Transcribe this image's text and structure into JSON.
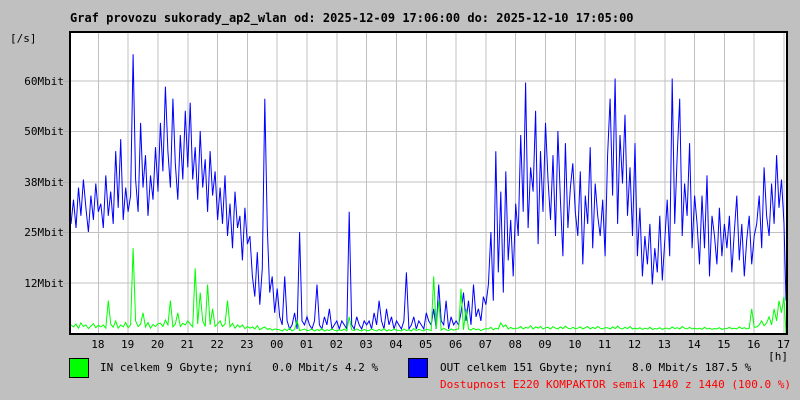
{
  "title": "Graf provozu sukorady_ap2_wlan od: 2025-12-09 17:06:00 do: 2025-12-10 17:05:00",
  "y_unit_label": "[/s]",
  "x_unit_label": "[h]",
  "colors": {
    "background": "#c0c0c0",
    "plot_background": "#ffffff",
    "grid": "#c0c0c0",
    "border": "#000000",
    "in_series": "#00ff00",
    "out_series": "#0000ff",
    "availability_text": "#ff0000"
  },
  "legend": {
    "in": {
      "color": "#00ff00",
      "label": "IN celkem 9 Gbyte; nyní   0.0 Mbit/s 4.2 %"
    },
    "out": {
      "color": "#0000ff",
      "label": "OUT celkem 151 Gbyte; nyní   8.0 Mbit/s 187.5 %"
    },
    "availability": {
      "color": "#ff0000",
      "label": "Dostupnost E220 KOMPAKTOR semik 1440 z 1440 (100.0 %)"
    }
  },
  "chart_data": {
    "type": "line",
    "title": "Graf provozu sukorady_ap2_wlan od: 2025-12-09 17:06:00 do: 2025-12-10 17:05:00",
    "ylabel": "[/s]",
    "xlabel": "[h]",
    "grid": true,
    "x_start": "17:06",
    "x_end": "17:05",
    "span_minutes": 1439,
    "sample_interval_min": 5,
    "ylim": [
      0,
      74
    ],
    "y_ticks": [
      {
        "label": "12Mbit",
        "value": 12.5
      },
      {
        "label": "25Mbit",
        "value": 25
      },
      {
        "label": "38Mbit",
        "value": 37.5
      },
      {
        "label": "50Mbit",
        "value": 50
      },
      {
        "label": "60Mbit",
        "value": 62.5
      }
    ],
    "x_hours": [
      "18",
      "19",
      "20",
      "21",
      "22",
      "23",
      "00",
      "01",
      "02",
      "03",
      "04",
      "05",
      "06",
      "07",
      "08",
      "09",
      "10",
      "11",
      "12",
      "13",
      "14",
      "15",
      "16",
      "17"
    ],
    "first_hour_offset_min": 54,
    "series": [
      {
        "name": "OUT",
        "unit": "Mbit/s",
        "color": "#0000ff",
        "values": [
          27,
          33,
          26,
          36,
          29,
          38,
          31,
          25,
          34,
          28,
          37,
          30,
          32,
          26,
          39,
          29,
          35,
          27,
          45,
          31,
          48,
          28,
          36,
          30,
          34,
          69,
          38,
          30,
          52,
          36,
          44,
          29,
          39,
          33,
          46,
          35,
          52,
          40,
          61,
          45,
          36,
          58,
          42,
          33,
          49,
          38,
          55,
          41,
          57,
          38,
          46,
          33,
          50,
          36,
          43,
          30,
          45,
          34,
          40,
          28,
          36,
          27,
          39,
          24,
          32,
          21,
          35,
          26,
          29,
          18,
          31,
          22,
          24,
          14,
          9,
          20,
          7,
          16,
          58,
          26,
          10,
          14,
          5,
          11,
          4,
          2,
          14,
          3,
          1,
          2,
          5,
          1,
          25,
          3,
          2,
          4,
          2,
          1,
          3,
          12,
          2,
          1,
          4,
          2,
          6,
          1,
          2,
          3,
          1,
          3,
          2,
          1,
          30,
          2,
          1,
          4,
          2,
          1,
          3,
          2,
          3,
          1,
          5,
          2,
          8,
          3,
          1,
          6,
          2,
          4,
          1,
          3,
          2,
          1,
          3,
          15,
          1,
          2,
          4,
          1,
          3,
          2,
          1,
          5,
          3,
          2,
          6,
          1,
          12,
          3,
          2,
          8,
          1,
          4,
          2,
          3,
          2,
          5,
          10,
          3,
          8,
          2,
          12,
          4,
          6,
          3,
          9,
          7,
          12,
          25,
          8,
          45,
          15,
          35,
          10,
          40,
          18,
          28,
          14,
          32,
          24,
          49,
          30,
          62,
          26,
          41,
          35,
          55,
          22,
          45,
          30,
          52,
          38,
          28,
          44,
          24,
          50,
          33,
          19,
          47,
          26,
          36,
          42,
          30,
          24,
          40,
          17,
          34,
          27,
          46,
          21,
          37,
          29,
          24,
          33,
          19,
          44,
          58,
          34,
          63,
          27,
          49,
          37,
          54,
          29,
          41,
          24,
          47,
          19,
          31,
          14,
          24,
          17,
          27,
          12,
          21,
          15,
          29,
          13,
          23,
          33,
          19,
          63,
          27,
          44,
          58,
          24,
          37,
          29,
          47,
          21,
          34,
          27,
          17,
          34,
          21,
          39,
          14,
          29,
          24,
          17,
          31,
          19,
          27,
          21,
          29,
          15,
          25,
          34,
          18,
          27,
          14,
          23,
          29,
          17,
          24,
          27,
          34,
          21,
          41,
          29,
          24,
          37,
          27,
          44,
          31,
          38,
          27,
          8
        ]
      },
      {
        "name": "IN",
        "unit": "Mbit/s",
        "color": "#00ff00",
        "values": [
          2,
          1.5,
          2.2,
          1.2,
          2.5,
          1.6,
          2,
          1.1,
          1.7,
          2.3,
          1.3,
          1.9,
          1.5,
          2,
          1.2,
          8,
          2.2,
          1.4,
          3,
          1.2,
          2,
          1.5,
          2.6,
          1.3,
          2,
          21,
          3,
          1.6,
          2.2,
          5,
          1.5,
          2.6,
          1.2,
          2.1,
          1.6,
          2.3,
          2.4,
          1.6,
          3.2,
          2,
          8,
          1.5,
          2.2,
          5,
          1.6,
          2.4,
          2,
          3,
          2.2,
          1.5,
          16,
          2.2,
          10,
          3,
          1.6,
          12,
          2,
          6,
          1.6,
          2.2,
          3,
          1.6,
          2.2,
          8,
          1.5,
          2.4,
          1.2,
          2,
          1.4,
          2,
          1.1,
          1.6,
          1.2,
          1.5,
          1,
          1.8,
          0.8,
          1.2,
          1.5,
          0.9,
          1.1,
          0.7,
          1,
          0.9,
          0.8,
          0.5,
          1,
          0.6,
          1.2,
          0.5,
          0.9,
          3,
          0.6,
          0.8,
          1,
          0.6,
          0.7,
          1,
          0.5,
          0.9,
          0.6,
          1.1,
          0.5,
          0.8,
          0.6,
          1,
          0.7,
          0.5,
          0.8,
          0.6,
          1,
          0.5,
          4,
          0.8,
          0.6,
          1,
          0.7,
          0.5,
          0.9,
          0.6,
          0.6,
          1,
          0.7,
          0.5,
          0.9,
          0.6,
          1.1,
          0.5,
          0.8,
          0.6,
          1,
          0.7,
          0.7,
          0.5,
          1,
          0.6,
          0.8,
          0.5,
          1.1,
          0.6,
          0.9,
          0.7,
          0.5,
          1,
          0.8,
          0.6,
          14,
          1,
          8,
          0.7,
          1.2,
          0.8,
          0.6,
          1,
          0.7,
          0.9,
          1,
          11,
          0.8,
          6,
          1,
          0.7,
          1.2,
          0.8,
          1,
          0.6,
          0.9,
          1.1,
          1,
          1.4,
          0.8,
          1.2,
          1,
          2.5,
          1.5,
          2,
          1,
          1.4,
          1,
          1.2,
          1.2,
          1.6,
          1,
          1.4,
          1.2,
          1.8,
          1,
          1.5,
          1.2,
          1.6,
          1,
          1.3,
          1.4,
          1,
          1.6,
          1.2,
          1,
          1.5,
          1.1,
          1.7,
          1.2,
          1,
          1.4,
          1.1,
          1.2,
          1.5,
          1,
          1.3,
          1.6,
          1,
          1.4,
          1.1,
          1.6,
          1.2,
          1,
          1.3,
          1.3,
          1,
          1.5,
          1.1,
          1.7,
          1.2,
          1,
          1.4,
          1.1,
          1.6,
          1,
          1.2,
          1,
          1.3,
          0.9,
          1.2,
          1,
          1.4,
          0.9,
          1.1,
          1,
          1.3,
          0.9,
          1.2,
          1.2,
          1,
          1.5,
          1.1,
          1.3,
          1,
          1.6,
          1.2,
          1,
          1.4,
          1,
          1.2,
          1,
          1.2,
          0.9,
          1.4,
          1,
          1.2,
          0.9,
          1.1,
          1,
          1.3,
          0.9,
          1.1,
          1.1,
          1.4,
          1,
          1.2,
          1,
          1.5,
          1.1,
          1.3,
          1,
          1.2,
          6,
          1.4,
          1.5,
          2,
          3,
          1.8,
          2.5,
          4,
          2,
          6,
          3,
          8,
          5,
          9,
          0
        ]
      }
    ],
    "legend_entries": [
      "IN celkem 9 Gbyte; nyní   0.0 Mbit/s 4.2 %",
      "OUT celkem 151 Gbyte; nyní   8.0 Mbit/s 187.5 %",
      "Dostupnost E220 KOMPAKTOR semik 1440 z 1440 (100.0 %)"
    ]
  }
}
